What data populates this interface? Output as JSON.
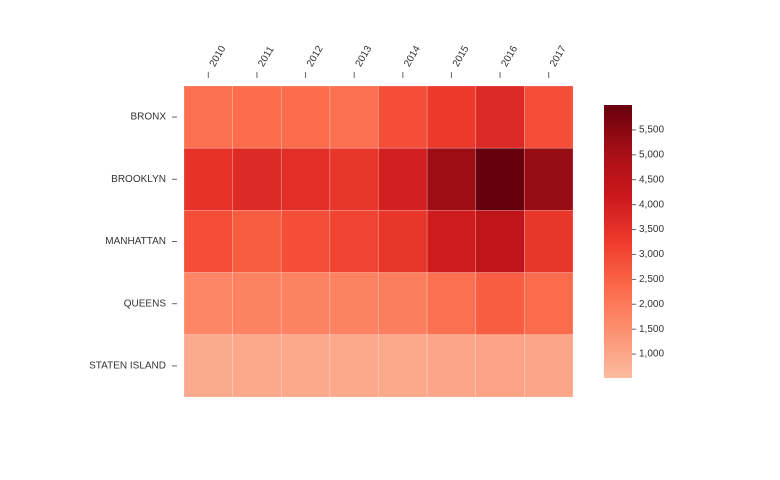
{
  "chart_data": {
    "type": "heatmap",
    "x_categories": [
      "2010",
      "2011",
      "2012",
      "2013",
      "2014",
      "2015",
      "2016",
      "2017"
    ],
    "y_categories": [
      "BRONX",
      "BROOKLYN",
      "MANHATTAN",
      "QUEENS",
      "STATEN ISLAND"
    ],
    "values": [
      [
        2200,
        2300,
        2300,
        2200,
        2900,
        3300,
        3700,
        2900
      ],
      [
        3500,
        3700,
        3600,
        3400,
        4000,
        5200,
        6000,
        5300
      ],
      [
        2900,
        2600,
        2900,
        3100,
        3400,
        4100,
        4500,
        3400
      ],
      [
        1700,
        1800,
        1800,
        1800,
        1900,
        2200,
        2600,
        2300
      ],
      [
        900,
        950,
        950,
        950,
        950,
        1000,
        1050,
        1000
      ]
    ],
    "colors": [
      "#fcbba1",
      "#fc9272",
      "#fb6a4a",
      "#ef3b2c",
      "#cb181d",
      "#a50f15",
      "#67000d"
    ],
    "zlim": [
      520,
      6000
    ],
    "zticks": [
      {
        "value": 1000,
        "label": "1,000"
      },
      {
        "value": 1500,
        "label": "1,500"
      },
      {
        "value": 2000,
        "label": "2,000"
      },
      {
        "value": 2500,
        "label": "2,500"
      },
      {
        "value": 3000,
        "label": "3,000"
      },
      {
        "value": 3500,
        "label": "3,500"
      },
      {
        "value": 4000,
        "label": "4,000"
      },
      {
        "value": 4500,
        "label": "4,500"
      },
      {
        "value": 5000,
        "label": "5,000"
      },
      {
        "value": 5500,
        "label": "5,500"
      }
    ]
  }
}
